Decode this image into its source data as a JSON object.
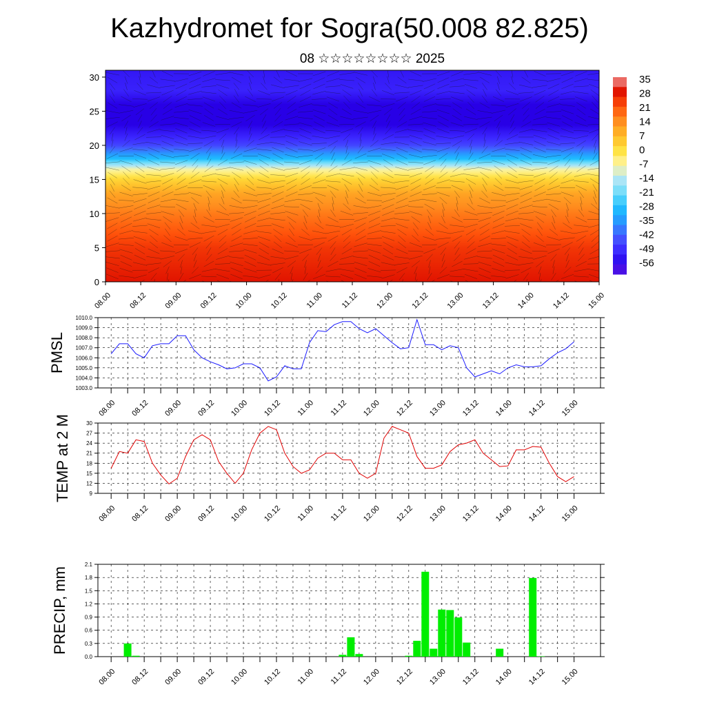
{
  "title": "Kazhydromet for Sogra(50.008 82.825)",
  "subtitle": "08 ☆☆☆☆☆☆☆☆ 2025",
  "chart_data": [
    {
      "id": "section",
      "type": "heatmap",
      "description_note": "",
      "x_ticks": [
        "08.00",
        "08.12",
        "09.00",
        "09.12",
        "10.00",
        "10.12",
        "11.00",
        "11.12",
        "12.00",
        "12.12",
        "13.00",
        "13.12",
        "14.00",
        "14.12",
        "15.00"
      ],
      "y_ticks": [
        0,
        5,
        10,
        15,
        20,
        25,
        30
      ],
      "ylim": [
        0,
        31
      ],
      "colorbar_labels": [
        "35",
        "28",
        "21",
        "14",
        "7",
        "0",
        "-7",
        "-14",
        "-21",
        "-28",
        "-35",
        "-42",
        "-49",
        "-56"
      ],
      "temperature_profile": [
        {
          "level": 0,
          "value": 28
        },
        {
          "level": 5,
          "value": 24
        },
        {
          "level": 10,
          "value": 16
        },
        {
          "level": 13,
          "value": 10
        },
        {
          "level": 15,
          "value": 2
        },
        {
          "level": 16.5,
          "value": -8
        },
        {
          "level": 18,
          "value": -28
        },
        {
          "level": 20,
          "value": -45
        },
        {
          "level": 23,
          "value": -56
        },
        {
          "level": 26,
          "value": -56
        },
        {
          "level": 28,
          "value": -50
        },
        {
          "level": 31,
          "value": -52
        }
      ]
    },
    {
      "id": "pmsl",
      "type": "line",
      "ylabel": "PMSL",
      "ylim": [
        1003,
        1010
      ],
      "y_ticks": [
        "1003.0",
        "1004.0",
        "1005.0",
        "1006.0",
        "1007.0",
        "1008.0",
        "1009.0",
        "1010.0"
      ],
      "x_ticks": [
        "08.00",
        "08.12",
        "09.00",
        "09.12",
        "10.00",
        "10.12",
        "11.00",
        "11.12",
        "12.00",
        "12.12",
        "13.00",
        "13.12",
        "14.00",
        "14.12",
        "15.00"
      ],
      "color": "#1a1aff",
      "x": [
        0,
        0.125,
        0.25,
        0.375,
        0.5,
        0.625,
        0.75,
        0.875,
        1,
        1.125,
        1.25,
        1.375,
        1.5,
        1.625,
        1.75,
        1.875,
        2,
        2.125,
        2.25,
        2.375,
        2.5,
        2.625,
        2.75,
        2.875,
        3,
        3.125,
        3.25,
        3.375,
        3.5,
        3.625,
        3.75,
        3.875,
        4,
        4.125,
        4.25,
        4.375,
        4.5,
        4.625,
        4.75,
        4.875,
        5,
        5.125,
        5.25,
        5.375,
        5.5,
        5.625,
        5.75,
        5.875,
        6,
        6.125,
        6.25,
        6.375,
        6.5,
        6.625,
        6.75,
        6.875,
        7
      ],
      "values": [
        1006.4,
        1007.4,
        1007.4,
        1006.4,
        1006.0,
        1007.2,
        1007.4,
        1007.4,
        1008.2,
        1008.2,
        1006.8,
        1006.0,
        1005.6,
        1005.3,
        1004.9,
        1005.0,
        1005.4,
        1005.4,
        1005.0,
        1003.7,
        1004.1,
        1005.2,
        1004.9,
        1004.9,
        1007.5,
        1008.7,
        1008.6,
        1009.3,
        1009.6,
        1009.6,
        1008.9,
        1008.5,
        1008.9,
        1008.2,
        1007.5,
        1006.9,
        1007.0,
        1009.8,
        1007.3,
        1007.3,
        1006.8,
        1007.2,
        1007.0,
        1005.0,
        1004.1,
        1004.4,
        1004.7,
        1004.4,
        1005.0,
        1005.3,
        1005.1,
        1005.1,
        1005.2,
        1005.9,
        1006.5,
        1006.9,
        1007.6
      ]
    },
    {
      "id": "temp",
      "type": "line",
      "ylabel": "TEMP at 2 M",
      "ylim": [
        9,
        30
      ],
      "y_ticks": [
        "9",
        "12",
        "15",
        "18",
        "21",
        "24",
        "27",
        "30"
      ],
      "x_ticks": [
        "08.00",
        "08.12",
        "09.00",
        "09.12",
        "10.00",
        "10.12",
        "11.00",
        "11.12",
        "12.00",
        "12.12",
        "13.00",
        "13.12",
        "14.00",
        "14.12",
        "15.00"
      ],
      "color": "#e00000",
      "x": [
        0,
        0.125,
        0.25,
        0.375,
        0.5,
        0.625,
        0.75,
        0.875,
        1,
        1.125,
        1.25,
        1.375,
        1.5,
        1.625,
        1.75,
        1.875,
        2,
        2.125,
        2.25,
        2.375,
        2.5,
        2.625,
        2.75,
        2.875,
        3,
        3.125,
        3.25,
        3.375,
        3.5,
        3.625,
        3.75,
        3.875,
        4,
        4.125,
        4.25,
        4.375,
        4.5,
        4.625,
        4.75,
        4.875,
        5,
        5.125,
        5.25,
        5.375,
        5.5,
        5.625,
        5.75,
        5.875,
        6,
        6.125,
        6.25,
        6.375,
        6.5,
        6.625,
        6.75,
        6.875,
        7
      ],
      "values": [
        16.5,
        21.5,
        21,
        25,
        24.5,
        18,
        14.5,
        11.8,
        13.5,
        20,
        25,
        26.5,
        25,
        18.5,
        15,
        12,
        15,
        22,
        27,
        29,
        28,
        21,
        17,
        15,
        16,
        19.5,
        21,
        21,
        19,
        19,
        15,
        13.5,
        15,
        25.5,
        29,
        28,
        27,
        20,
        16.5,
        16.5,
        17.5,
        21.5,
        23.5,
        24,
        25,
        21,
        19,
        17,
        17.2,
        22,
        22,
        23,
        22.8,
        18,
        14,
        12.5,
        14
      ]
    },
    {
      "id": "precip",
      "type": "bar",
      "ylabel": "PRECIP, mm",
      "ylim": [
        0,
        2.1
      ],
      "y_ticks": [
        "0.0",
        "0.3",
        "0.6",
        "0.9",
        "1.2",
        "1.5",
        "1.8",
        "2.1"
      ],
      "x_ticks": [
        "08.00",
        "08.12",
        "09.00",
        "09.12",
        "10.00",
        "10.12",
        "11.00",
        "11.12",
        "12.00",
        "12.12",
        "13.00",
        "13.12",
        "14.00",
        "14.12",
        "15.00"
      ],
      "color": "#00ee00",
      "x": [
        0.25,
        0.375,
        3.5,
        3.625,
        3.75,
        4.5,
        4.625,
        4.75,
        4.875,
        5,
        5.125,
        5.25,
        5.375,
        5.875,
        6.375,
        6.5
      ],
      "values": [
        0.3,
        0.02,
        0.04,
        0.44,
        0.06,
        0.02,
        0.36,
        1.93,
        0.18,
        1.07,
        1.06,
        0.89,
        0.32,
        0.18,
        1.79,
        0.01
      ]
    }
  ]
}
